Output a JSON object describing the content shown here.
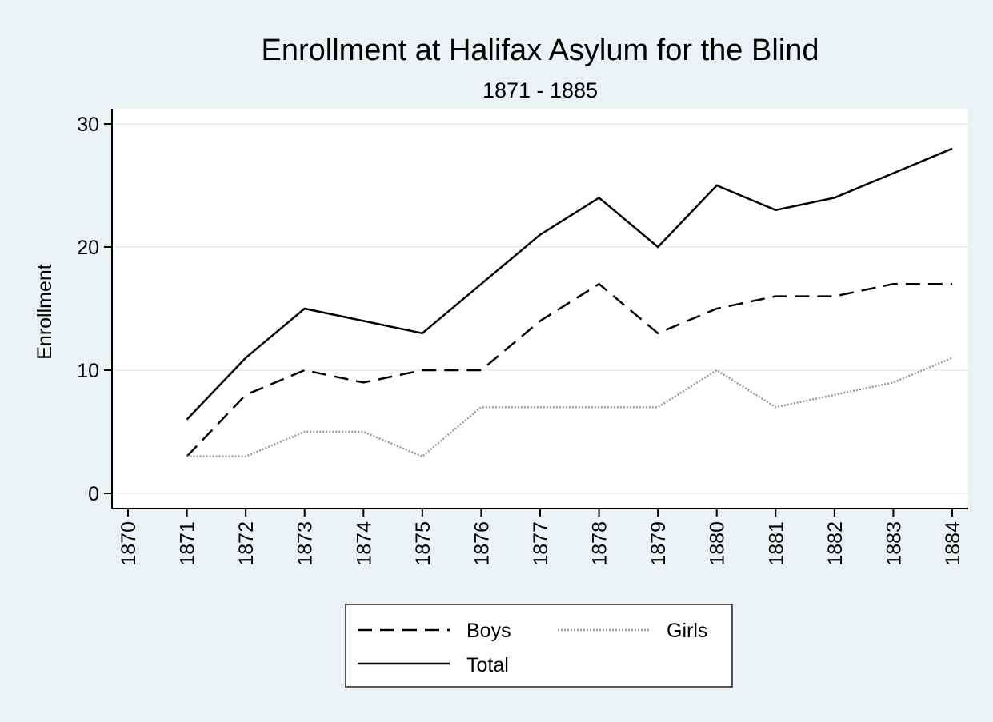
{
  "chart_data": {
    "type": "line",
    "title": "Enrollment at Halifax Asylum for the Blind",
    "subtitle": "1871 - 1885",
    "xlabel": "",
    "ylabel": "Enrollment",
    "x": [
      1871,
      1872,
      1873,
      1874,
      1875,
      1876,
      1877,
      1878,
      1879,
      1880,
      1881,
      1882,
      1883,
      1884
    ],
    "x_ticks": [
      "1870",
      "1871",
      "1872",
      "1873",
      "1874",
      "1875",
      "1876",
      "1877",
      "1878",
      "1879",
      "1880",
      "1881",
      "1882",
      "1883",
      "1884"
    ],
    "y_ticks": [
      "0",
      "10",
      "20",
      "30"
    ],
    "xlim": [
      1870,
      1884
    ],
    "ylim": [
      0,
      30
    ],
    "grid": "horizontal",
    "legend_position": "bottom",
    "series": [
      {
        "name": "Boys",
        "style": "dashed",
        "values": [
          3,
          8,
          10,
          9,
          10,
          10,
          14,
          17,
          13,
          15,
          16,
          16,
          17,
          17
        ]
      },
      {
        "name": "Girls",
        "style": "dotted",
        "values": [
          3,
          3,
          5,
          5,
          3,
          7,
          7,
          7,
          7,
          10,
          7,
          8,
          9,
          11
        ]
      },
      {
        "name": "Total",
        "style": "solid",
        "values": [
          6,
          11,
          15,
          14,
          13,
          17,
          21,
          24,
          20,
          25,
          23,
          24,
          26,
          28
        ]
      }
    ],
    "colors": {
      "page_background": "#eaf2f3",
      "plot_background": "#ffffff",
      "line": "#000000",
      "girls_line": "#9a9a9a",
      "grid": "#eaf2f3"
    }
  }
}
